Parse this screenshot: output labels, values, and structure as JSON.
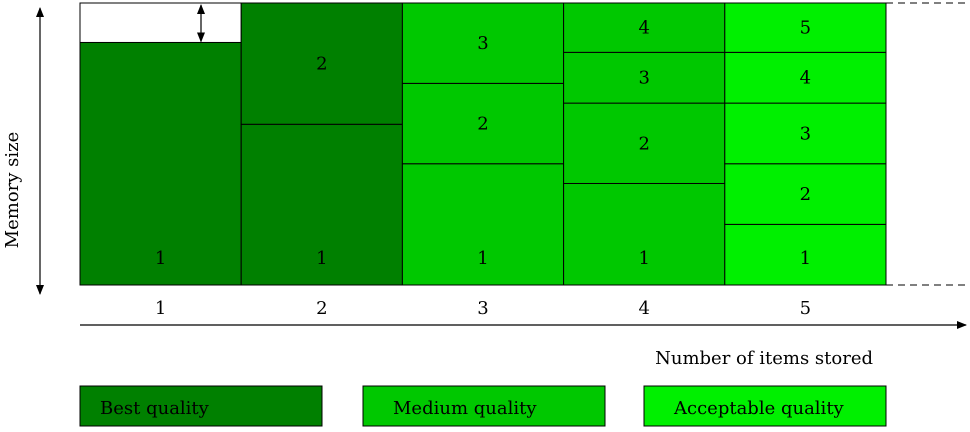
{
  "diagram": {
    "y_axis_label": "Memory size",
    "x_axis_label": "Number of items stored",
    "x_ticks": [
      "1",
      "2",
      "3",
      "4",
      "5"
    ],
    "unused_memory_fraction": 0.14,
    "columns": [
      {
        "items": 1,
        "quality": "best",
        "blocks": [
          "1"
        ]
      },
      {
        "items": 2,
        "quality": "best",
        "blocks": [
          "1",
          "2"
        ]
      },
      {
        "items": 3,
        "quality": "medium",
        "blocks": [
          "1",
          "2",
          "3"
        ]
      },
      {
        "items": 4,
        "quality": "medium",
        "blocks": [
          "1",
          "2",
          "3",
          "4"
        ]
      },
      {
        "items": 5,
        "quality": "acceptable",
        "blocks": [
          "1",
          "2",
          "3",
          "4",
          "5"
        ]
      }
    ],
    "legend": [
      {
        "key": "best",
        "label": "Best quality",
        "color": "#008000"
      },
      {
        "key": "medium",
        "label": "Medium quality",
        "color": "#00c800"
      },
      {
        "key": "acceptable",
        "label": "Acceptable quality",
        "color": "#00f000"
      }
    ],
    "colors": {
      "best": "#008000",
      "medium": "#00c800",
      "acceptable": "#00f000",
      "outline": "#000000"
    }
  }
}
